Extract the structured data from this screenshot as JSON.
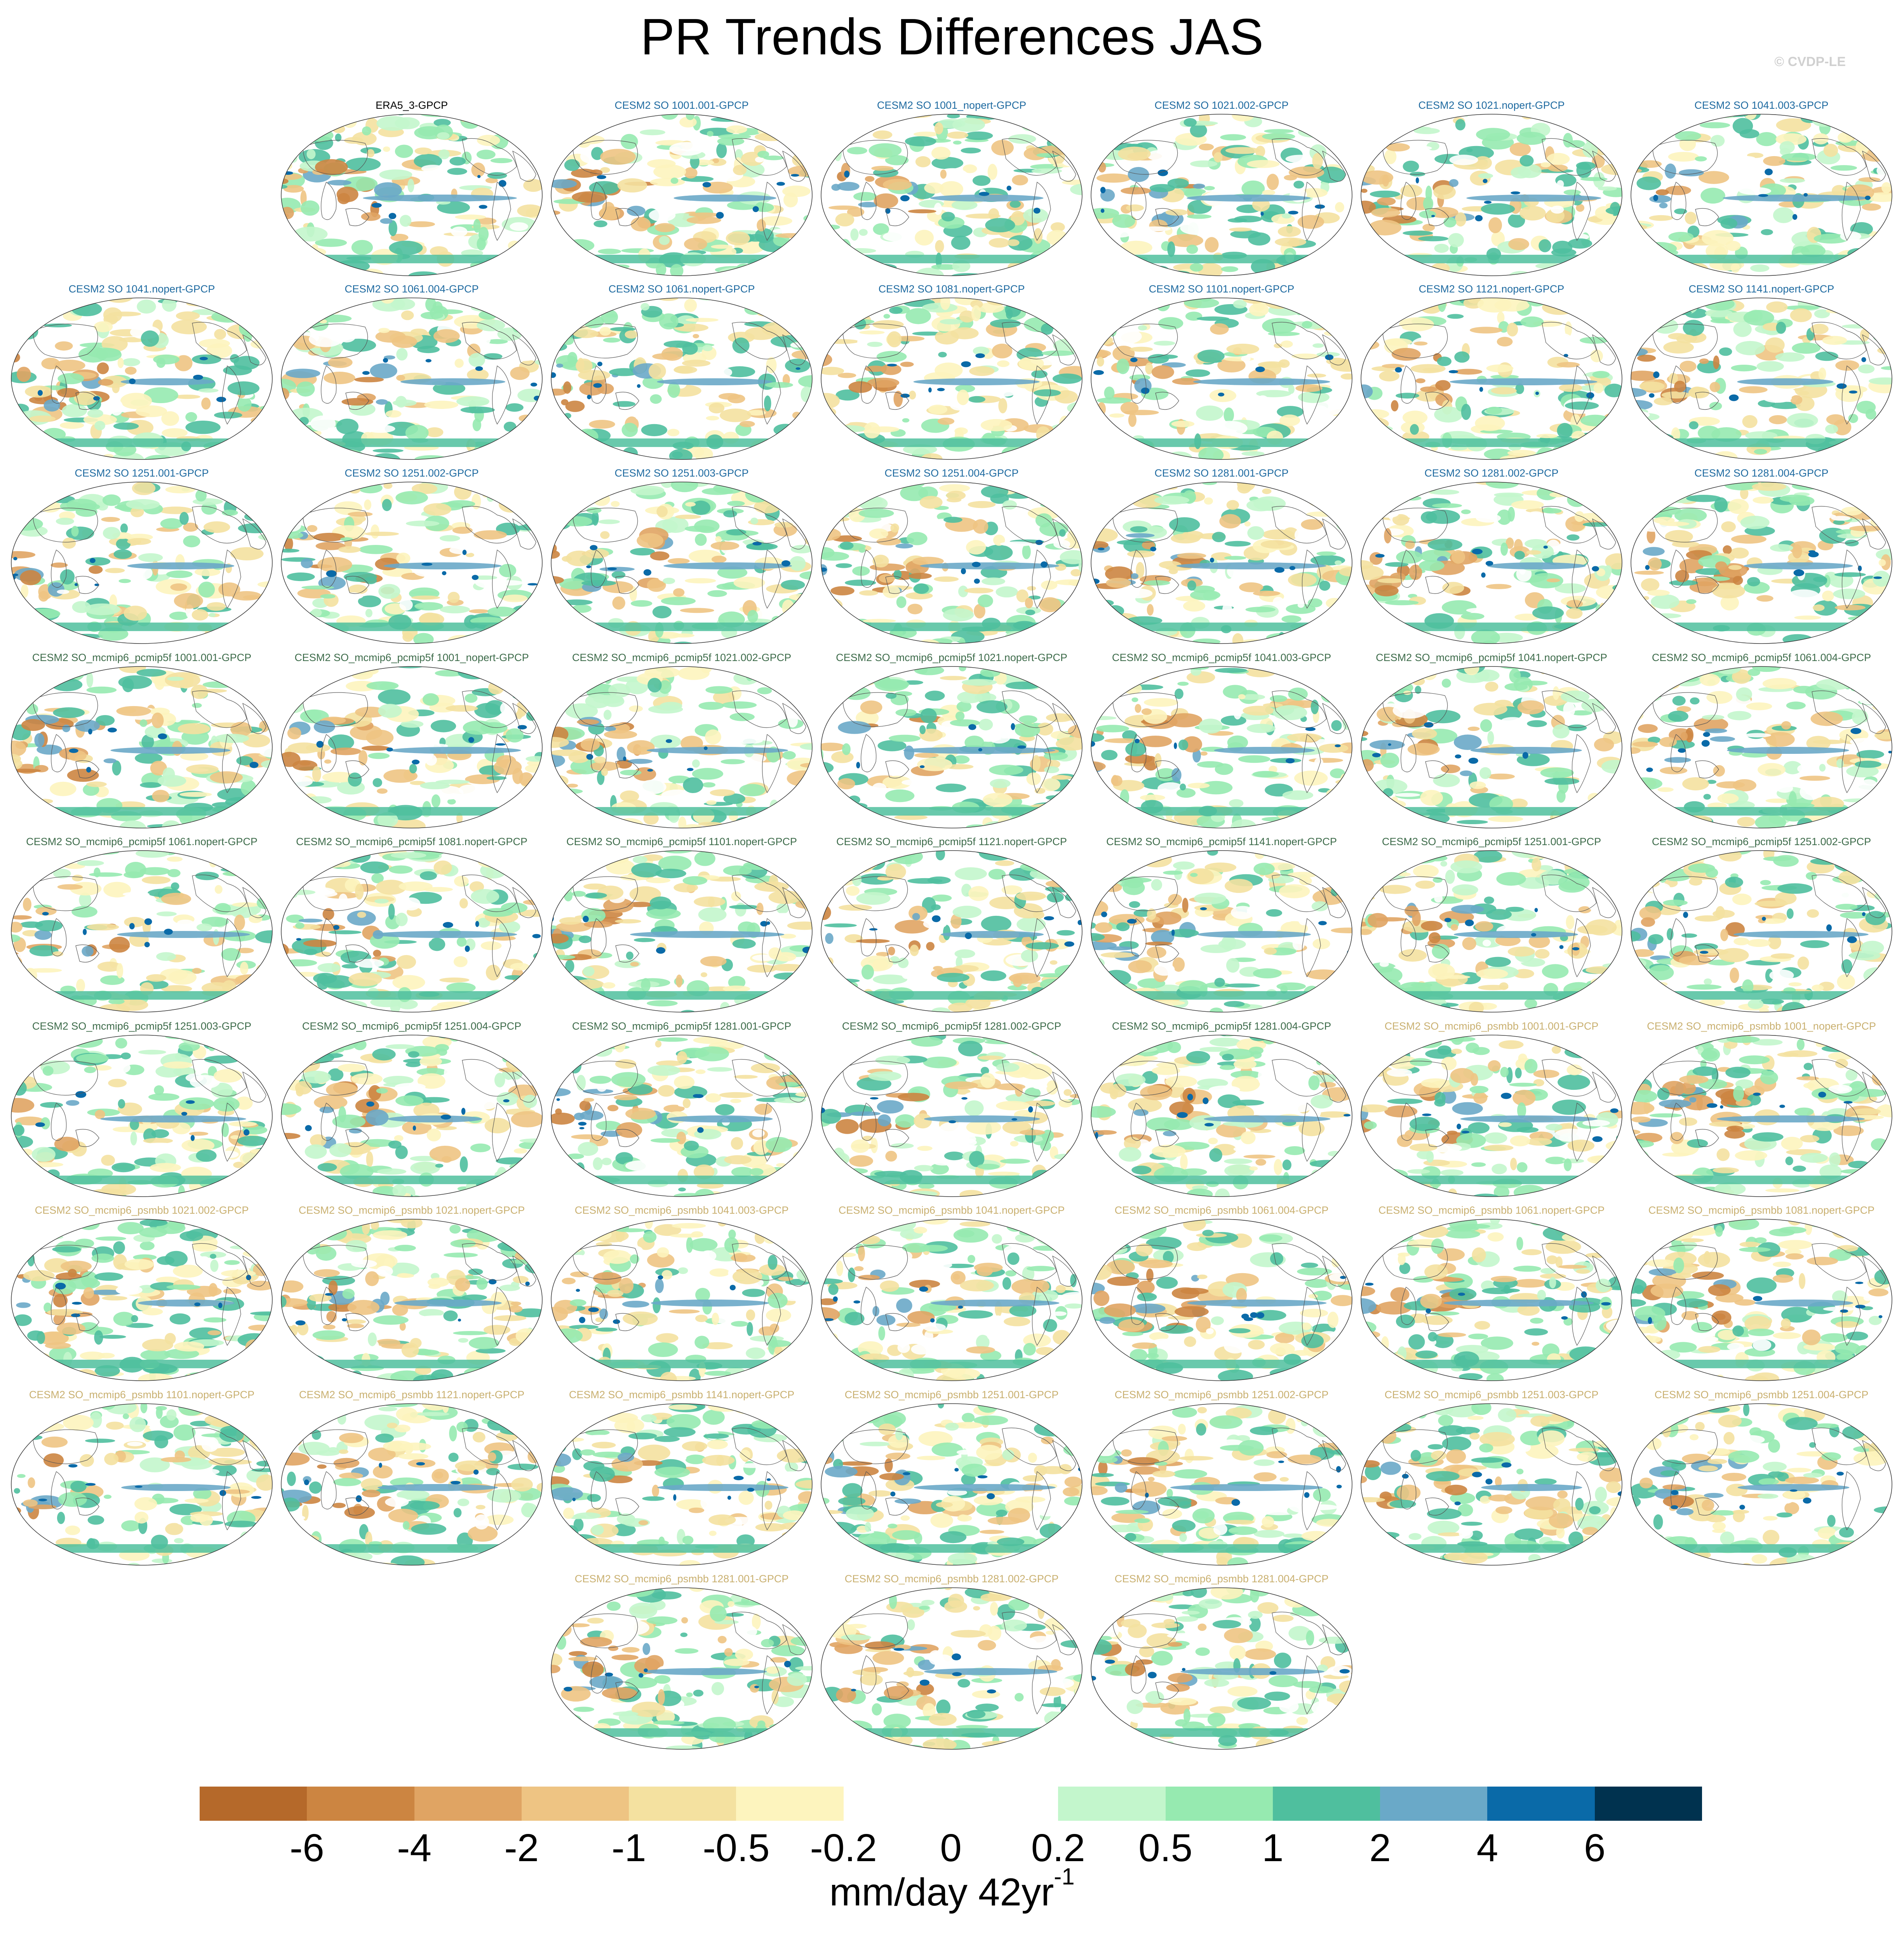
{
  "title": "PR Trends Differences JAS",
  "watermark": "© CVDP-LE",
  "colorbar": {
    "colors": [
      "#b5692a",
      "#cc8541",
      "#e0a463",
      "#eec483",
      "#f4e1a0",
      "#fdf4be",
      "#ffffff",
      "#ffffff",
      "#c3f6cc",
      "#96eab0",
      "#4fbf9e",
      "#6aa9c8",
      "#0a6aa8",
      "#00324f"
    ],
    "tick_labels": [
      "-6",
      "-4",
      "-2",
      "-1",
      "-0.5",
      "-0.2",
      "0",
      "0.2",
      "0.5",
      "1",
      "2",
      "4",
      "6"
    ],
    "units_text": "mm/day 42yr",
    "units_sup": "-1"
  },
  "group_colors": {
    "obs": "#000000",
    "cesm2_so": "#1e6aa0",
    "pcmip5f": "#3d6b4a",
    "psmbb": "#c9b070"
  },
  "panels": [
    {
      "label": "ERA5_3-GPCP",
      "group": "obs"
    },
    {
      "label": "CESM2 SO 1001.001-GPCP",
      "group": "cesm2_so"
    },
    {
      "label": "CESM2 SO 1001_nopert-GPCP",
      "group": "cesm2_so"
    },
    {
      "label": "CESM2 SO 1021.002-GPCP",
      "group": "cesm2_so"
    },
    {
      "label": "CESM2 SO 1021.nopert-GPCP",
      "group": "cesm2_so"
    },
    {
      "label": "CESM2 SO 1041.003-GPCP",
      "group": "cesm2_so"
    },
    {
      "label": "CESM2 SO 1041.nopert-GPCP",
      "group": "cesm2_so"
    },
    {
      "label": "CESM2 SO 1061.004-GPCP",
      "group": "cesm2_so"
    },
    {
      "label": "CESM2 SO 1061.nopert-GPCP",
      "group": "cesm2_so"
    },
    {
      "label": "CESM2 SO 1081.nopert-GPCP",
      "group": "cesm2_so"
    },
    {
      "label": "CESM2 SO 1101.nopert-GPCP",
      "group": "cesm2_so"
    },
    {
      "label": "CESM2 SO 1121.nopert-GPCP",
      "group": "cesm2_so"
    },
    {
      "label": "CESM2 SO 1141.nopert-GPCP",
      "group": "cesm2_so"
    },
    {
      "label": "CESM2 SO 1251.001-GPCP",
      "group": "cesm2_so"
    },
    {
      "label": "CESM2 SO 1251.002-GPCP",
      "group": "cesm2_so"
    },
    {
      "label": "CESM2 SO 1251.003-GPCP",
      "group": "cesm2_so"
    },
    {
      "label": "CESM2 SO 1251.004-GPCP",
      "group": "cesm2_so"
    },
    {
      "label": "CESM2 SO 1281.001-GPCP",
      "group": "cesm2_so"
    },
    {
      "label": "CESM2 SO 1281.002-GPCP",
      "group": "cesm2_so"
    },
    {
      "label": "CESM2 SO 1281.004-GPCP",
      "group": "cesm2_so"
    },
    {
      "label": "CESM2 SO_mcmip6_pcmip5f 1001.001-GPCP",
      "group": "pcmip5f"
    },
    {
      "label": "CESM2 SO_mcmip6_pcmip5f 1001_nopert-GPCP",
      "group": "pcmip5f"
    },
    {
      "label": "CESM2 SO_mcmip6_pcmip5f 1021.002-GPCP",
      "group": "pcmip5f"
    },
    {
      "label": "CESM2 SO_mcmip6_pcmip5f 1021.nopert-GPCP",
      "group": "pcmip5f"
    },
    {
      "label": "CESM2 SO_mcmip6_pcmip5f 1041.003-GPCP",
      "group": "pcmip5f"
    },
    {
      "label": "CESM2 SO_mcmip6_pcmip5f 1041.nopert-GPCP",
      "group": "pcmip5f"
    },
    {
      "label": "CESM2 SO_mcmip6_pcmip5f 1061.004-GPCP",
      "group": "pcmip5f"
    },
    {
      "label": "CESM2 SO_mcmip6_pcmip5f 1061.nopert-GPCP",
      "group": "pcmip5f"
    },
    {
      "label": "CESM2 SO_mcmip6_pcmip5f 1081.nopert-GPCP",
      "group": "pcmip5f"
    },
    {
      "label": "CESM2 SO_mcmip6_pcmip5f 1101.nopert-GPCP",
      "group": "pcmip5f"
    },
    {
      "label": "CESM2 SO_mcmip6_pcmip5f 1121.nopert-GPCP",
      "group": "pcmip5f"
    },
    {
      "label": "CESM2 SO_mcmip6_pcmip5f 1141.nopert-GPCP",
      "group": "pcmip5f"
    },
    {
      "label": "CESM2 SO_mcmip6_pcmip5f 1251.001-GPCP",
      "group": "pcmip5f"
    },
    {
      "label": "CESM2 SO_mcmip6_pcmip5f 1251.002-GPCP",
      "group": "pcmip5f"
    },
    {
      "label": "CESM2 SO_mcmip6_pcmip5f 1251.003-GPCP",
      "group": "pcmip5f"
    },
    {
      "label": "CESM2 SO_mcmip6_pcmip5f 1251.004-GPCP",
      "group": "pcmip5f"
    },
    {
      "label": "CESM2 SO_mcmip6_pcmip5f 1281.001-GPCP",
      "group": "pcmip5f"
    },
    {
      "label": "CESM2 SO_mcmip6_pcmip5f 1281.002-GPCP",
      "group": "pcmip5f"
    },
    {
      "label": "CESM2 SO_mcmip6_pcmip5f 1281.004-GPCP",
      "group": "pcmip5f"
    },
    {
      "label": "CESM2 SO_mcmip6_psmbb 1001.001-GPCP",
      "group": "psmbb"
    },
    {
      "label": "CESM2 SO_mcmip6_psmbb 1001_nopert-GPCP",
      "group": "psmbb"
    },
    {
      "label": "CESM2 SO_mcmip6_psmbb 1021.002-GPCP",
      "group": "psmbb"
    },
    {
      "label": "CESM2 SO_mcmip6_psmbb 1021.nopert-GPCP",
      "group": "psmbb"
    },
    {
      "label": "CESM2 SO_mcmip6_psmbb 1041.003-GPCP",
      "group": "psmbb"
    },
    {
      "label": "CESM2 SO_mcmip6_psmbb 1041.nopert-GPCP",
      "group": "psmbb"
    },
    {
      "label": "CESM2 SO_mcmip6_psmbb 1061.004-GPCP",
      "group": "psmbb"
    },
    {
      "label": "CESM2 SO_mcmip6_psmbb 1061.nopert-GPCP",
      "group": "psmbb"
    },
    {
      "label": "CESM2 SO_mcmip6_psmbb 1081.nopert-GPCP",
      "group": "psmbb"
    },
    {
      "label": "CESM2 SO_mcmip6_psmbb 1101.nopert-GPCP",
      "group": "psmbb"
    },
    {
      "label": "CESM2 SO_mcmip6_psmbb 1121.nopert-GPCP",
      "group": "psmbb"
    },
    {
      "label": "CESM2 SO_mcmip6_psmbb 1141.nopert-GPCP",
      "group": "psmbb"
    },
    {
      "label": "CESM2 SO_mcmip6_psmbb 1251.001-GPCP",
      "group": "psmbb"
    },
    {
      "label": "CESM2 SO_mcmip6_psmbb 1251.002-GPCP",
      "group": "psmbb"
    },
    {
      "label": "CESM2 SO_mcmip6_psmbb 1251.003-GPCP",
      "group": "psmbb"
    },
    {
      "label": "CESM2 SO_mcmip6_psmbb 1251.004-GPCP",
      "group": "psmbb"
    },
    {
      "label": "CESM2 SO_mcmip6_psmbb 1281.001-GPCP",
      "group": "psmbb"
    },
    {
      "label": "CESM2 SO_mcmip6_psmbb 1281.002-GPCP",
      "group": "psmbb"
    },
    {
      "label": "CESM2 SO_mcmip6_psmbb 1281.004-GPCP",
      "group": "psmbb"
    }
  ]
}
